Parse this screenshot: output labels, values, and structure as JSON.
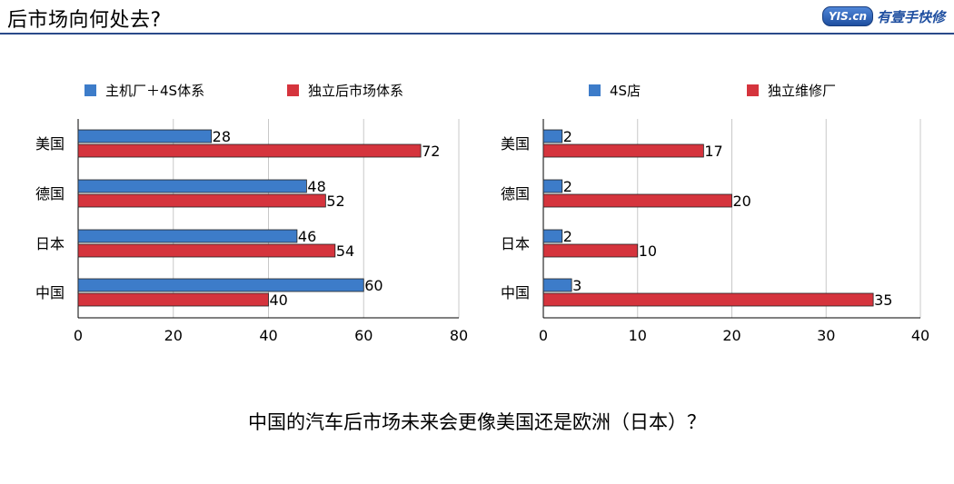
{
  "header": {
    "title": "后市场向何处去?",
    "logo_badge": "YIS.cn",
    "logo_text": "有壹手快修"
  },
  "chart_data": [
    {
      "type": "bar",
      "orientation": "horizontal",
      "categories": [
        "美国",
        "德国",
        "日本",
        "中国"
      ],
      "series": [
        {
          "name": "主机厂＋4S体系",
          "color": "#3d7cc9",
          "values": [
            28,
            48,
            46,
            60
          ]
        },
        {
          "name": "独立后市场体系",
          "color": "#d5343d",
          "values": [
            72,
            52,
            54,
            40
          ]
        }
      ],
      "xlim": [
        0,
        80
      ],
      "xticks": [
        0,
        20,
        40,
        60,
        80
      ],
      "grid": true,
      "legend": "top"
    },
    {
      "type": "bar",
      "orientation": "horizontal",
      "categories": [
        "美国",
        "德国",
        "日本",
        "中国"
      ],
      "series": [
        {
          "name": "4S店",
          "color": "#3d7cc9",
          "values": [
            2,
            2,
            2,
            3
          ]
        },
        {
          "name": "独立维修厂",
          "color": "#d5343d",
          "values": [
            17,
            20,
            10,
            35
          ]
        }
      ],
      "xlim": [
        0,
        40
      ],
      "xticks": [
        0,
        10,
        20,
        30,
        40
      ],
      "grid": true,
      "legend": "top"
    }
  ],
  "question": "中国的汽车后市场未来会更像美国还是欧洲（日本）？"
}
